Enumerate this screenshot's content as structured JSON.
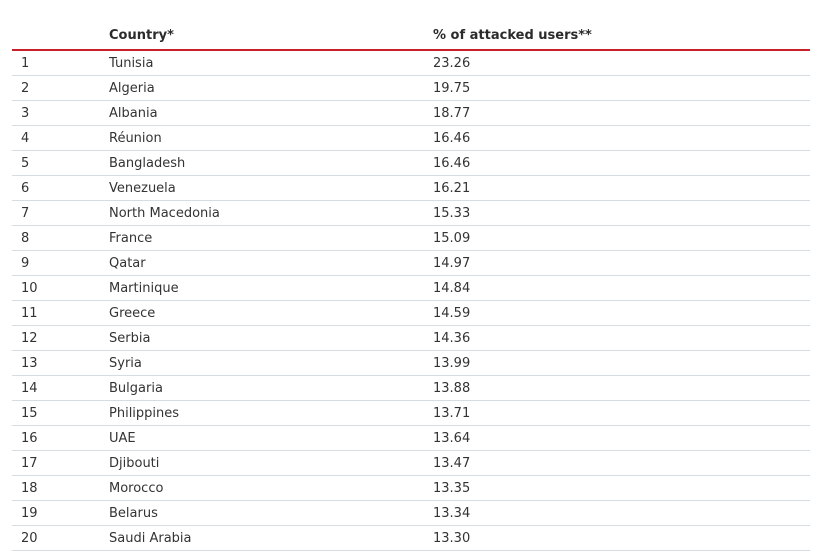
{
  "table": {
    "headers": {
      "rank": "",
      "country": "Country*",
      "percent": "% of attacked users**"
    },
    "rows": [
      {
        "rank": "1",
        "country": "Tunisia",
        "percent": "23.26"
      },
      {
        "rank": "2",
        "country": "Algeria",
        "percent": "19.75"
      },
      {
        "rank": "3",
        "country": "Albania",
        "percent": "18.77"
      },
      {
        "rank": "4",
        "country": "Réunion",
        "percent": "16.46"
      },
      {
        "rank": "5",
        "country": "Bangladesh",
        "percent": "16.46"
      },
      {
        "rank": "6",
        "country": "Venezuela",
        "percent": "16.21"
      },
      {
        "rank": "7",
        "country": "North Macedonia",
        "percent": "15.33"
      },
      {
        "rank": "8",
        "country": "France",
        "percent": "15.09"
      },
      {
        "rank": "9",
        "country": "Qatar",
        "percent": "14.97"
      },
      {
        "rank": "10",
        "country": "Martinique",
        "percent": "14.84"
      },
      {
        "rank": "11",
        "country": "Greece",
        "percent": "14.59"
      },
      {
        "rank": "12",
        "country": "Serbia",
        "percent": "14.36"
      },
      {
        "rank": "13",
        "country": "Syria",
        "percent": "13.99"
      },
      {
        "rank": "14",
        "country": "Bulgaria",
        "percent": "13.88"
      },
      {
        "rank": "15",
        "country": "Philippines",
        "percent": "13.71"
      },
      {
        "rank": "16",
        "country": "UAE",
        "percent": "13.64"
      },
      {
        "rank": "17",
        "country": "Djibouti",
        "percent": "13.47"
      },
      {
        "rank": "18",
        "country": "Morocco",
        "percent": "13.35"
      },
      {
        "rank": "19",
        "country": "Belarus",
        "percent": "13.34"
      },
      {
        "rank": "20",
        "country": "Saudi Arabia",
        "percent": "13.30"
      }
    ],
    "header_rule_color": "#c8202a",
    "row_rule_color": "#d5dde3"
  }
}
